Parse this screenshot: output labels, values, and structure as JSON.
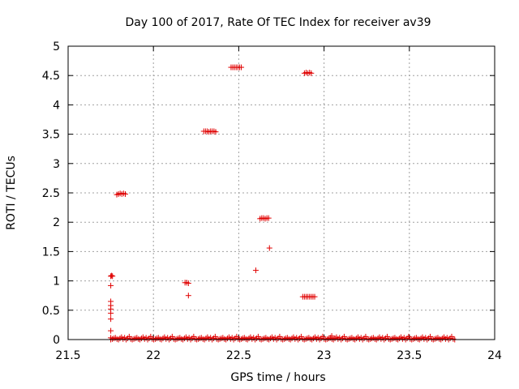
{
  "chart_data": {
    "type": "scatter",
    "title": "Day 100 of 2017, Rate Of TEC Index for receiver av39",
    "xlabel": "GPS time / hours",
    "ylabel": "ROTI / TECUs",
    "xlim": [
      21.5,
      24
    ],
    "ylim": [
      0,
      5
    ],
    "xticks": [
      "21.5",
      "22",
      "22.5",
      "23",
      "23.5",
      "24"
    ],
    "yticks": [
      "0",
      "0.5",
      "1",
      "1.5",
      "2",
      "2.5",
      "3",
      "3.5",
      "4",
      "4.5",
      "5"
    ],
    "grid": true,
    "marker": "+",
    "color": "#e00000",
    "series": [
      {
        "x": [
          21.75,
          21.755,
          21.76,
          21.75,
          21.75,
          21.75,
          21.75,
          21.75,
          21.75,
          21.75,
          21.75,
          21.785,
          21.795,
          21.805,
          21.815,
          21.825,
          21.835,
          22.185,
          22.195,
          22.205,
          22.205,
          22.295,
          22.305,
          22.315,
          22.325,
          22.335,
          22.345,
          22.355,
          22.365,
          22.455,
          22.465,
          22.475,
          22.485,
          22.495,
          22.505,
          22.515,
          22.6,
          22.625,
          22.635,
          22.645,
          22.655,
          22.665,
          22.675,
          22.68,
          22.875,
          22.885,
          22.895,
          22.905,
          22.915,
          22.925,
          22.935,
          22.945,
          22.885,
          22.895,
          22.905,
          22.915,
          22.925,
          23.045
        ],
        "y": [
          1.08,
          1.09,
          1.08,
          0.92,
          0.65,
          0.58,
          0.52,
          0.45,
          0.35,
          0.15,
          0.03,
          2.47,
          2.48,
          2.49,
          2.48,
          2.49,
          2.48,
          0.97,
          0.97,
          0.96,
          0.75,
          3.55,
          3.55,
          3.55,
          3.54,
          3.55,
          3.55,
          3.55,
          3.54,
          4.64,
          4.64,
          4.64,
          4.64,
          4.64,
          4.64,
          4.64,
          1.18,
          2.06,
          2.07,
          2.07,
          2.06,
          2.07,
          2.07,
          1.56,
          0.73,
          0.73,
          0.73,
          0.73,
          0.73,
          0.73,
          0.73,
          0.73,
          4.54,
          4.55,
          4.54,
          4.55,
          4.54,
          0.06
        ]
      }
    ],
    "baseline": {
      "x_start": 21.75,
      "x_end": 23.77,
      "x_step": 0.009,
      "y_values": [
        0.0,
        0.01,
        0.02,
        0.03,
        0.01,
        0.0,
        0.02,
        0.04,
        0.01,
        0.03,
        0.0,
        0.02,
        0.05,
        0.01
      ]
    }
  }
}
